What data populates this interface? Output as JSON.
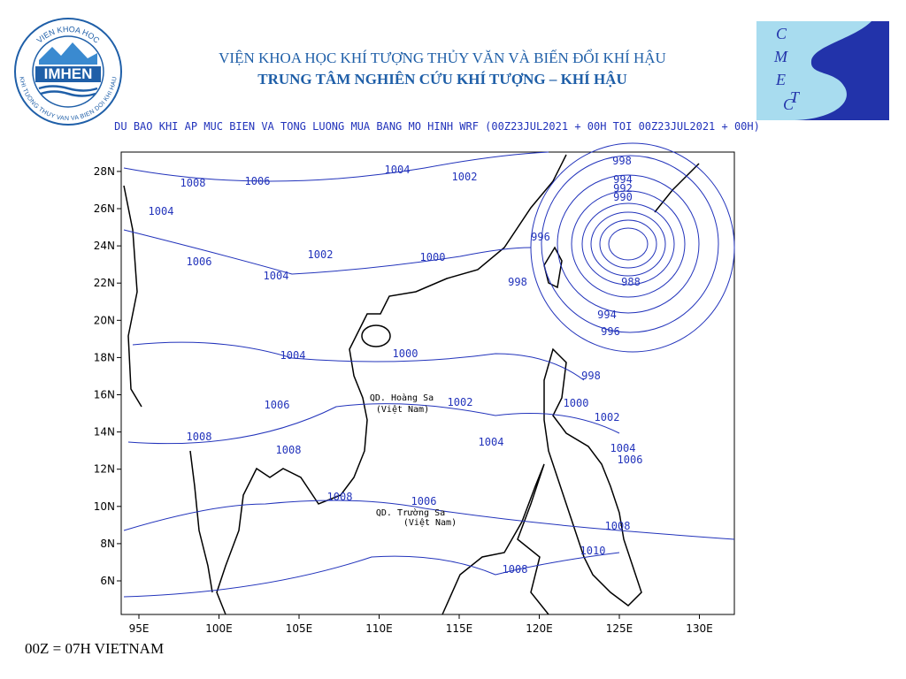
{
  "header": {
    "institute": "VIỆN KHOA HỌC KHÍ TƯỢNG THỦY VĂN VÀ BIẾN ĐỔI KHÍ HẬU",
    "center": "TRUNG TÂM NGHIÊN CỨU KHÍ TƯỢNG – KHÍ HẬU",
    "logo_left": {
      "name": "IMHEN",
      "ring_top": "VIEN KHOA HOC",
      "ring_bottom": "KHI TUONG THUY VAN VA BIEN DOI KHI HAU"
    },
    "logo_right": {
      "letters": [
        "C",
        "M",
        "E",
        "T",
        "C"
      ]
    }
  },
  "map": {
    "title": "DU BAO KHI AP MUC BIEN VA TONG LUONG MUA BANG MO HINH WRF (00Z23JUL2021 + 00H TOI 00Z23JUL2021 + 00H)",
    "lon_labels": [
      "95E",
      "100E",
      "105E",
      "110E",
      "115E",
      "120E",
      "125E",
      "130E"
    ],
    "lat_labels": [
      "6N",
      "8N",
      "10N",
      "12N",
      "14N",
      "16N",
      "18N",
      "20N",
      "22N",
      "24N",
      "26N",
      "28N"
    ],
    "isobar_labels": [
      "1008",
      "1006",
      "1004",
      "1002",
      "998",
      "994",
      "992",
      "990",
      "1004",
      "996",
      "1006",
      "1002",
      "1000",
      "1004",
      "998",
      "988",
      "994",
      "996",
      "1004",
      "1000",
      "998",
      "1006",
      "1002",
      "1000",
      "1002",
      "1008",
      "1004",
      "1004",
      "1006",
      "1008",
      "1006",
      "1008",
      "1008",
      "1010",
      "1008"
    ],
    "places": [
      "QD. Hoàng Sa",
      "(Việt Nam)",
      "QD. Trường Sa",
      "(Việt Nam)"
    ]
  },
  "footer": "00Z = 07H VIETNAM"
}
